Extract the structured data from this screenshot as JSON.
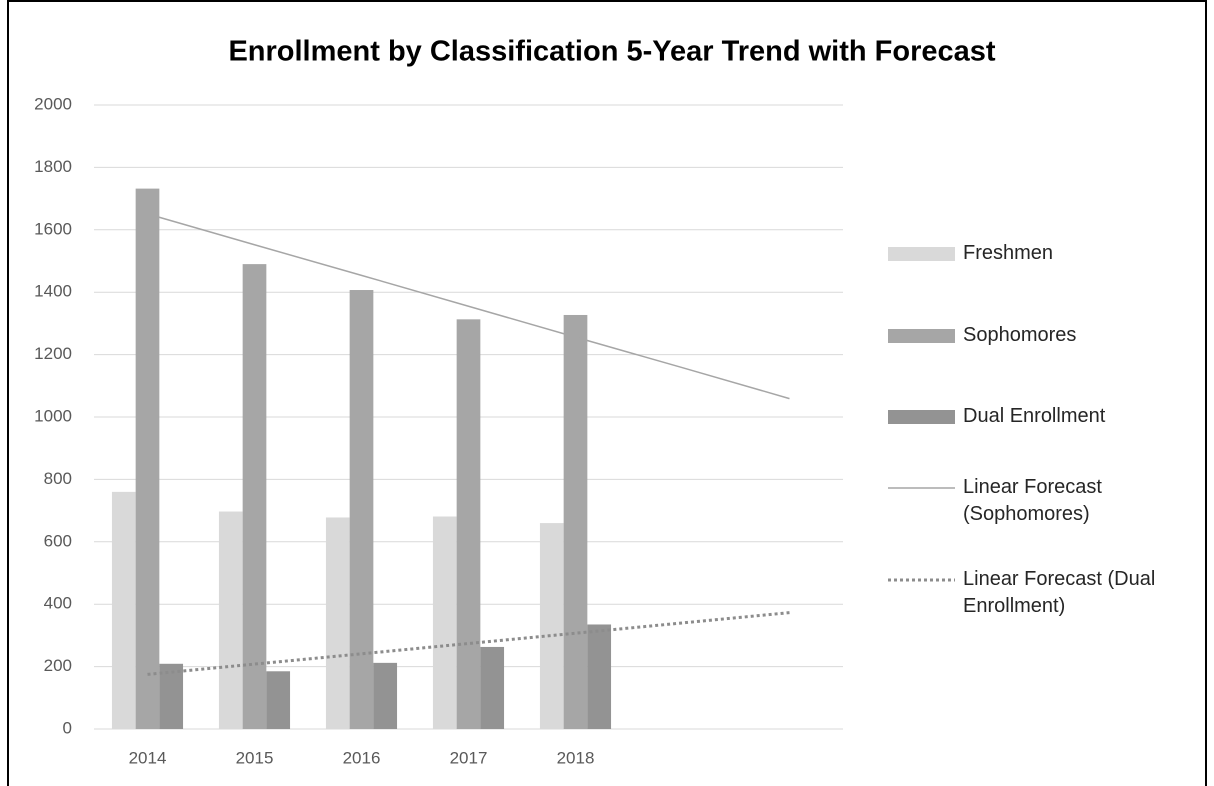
{
  "chart_data": {
    "type": "bar",
    "title": "Enrollment by Classification 5-Year Trend with Forecast",
    "categories": [
      "2014",
      "2015",
      "2016",
      "2017",
      "2018",
      null,
      null
    ],
    "series": [
      {
        "name": "Freshmen",
        "type": "bar",
        "color": "#d9d9d9",
        "values": [
          760,
          697,
          678,
          681,
          660,
          null,
          null
        ]
      },
      {
        "name": "Sophomores",
        "type": "bar",
        "color": "#a6a6a6",
        "values": [
          1732,
          1490,
          1407,
          1313,
          1327,
          null,
          null
        ]
      },
      {
        "name": "Dual Enrollment",
        "type": "bar",
        "color": "#939393",
        "values": [
          209,
          185,
          212,
          263,
          335,
          null,
          null
        ]
      },
      {
        "name": "Linear Forecast (Sophomores)",
        "type": "line",
        "dash": "solid",
        "color": "#a6a6a6",
        "values": [
          1651,
          1552,
          1454,
          1355,
          1256,
          1158,
          1059
        ]
      },
      {
        "name": "Linear Forecast (Dual Enrollment)",
        "type": "line",
        "dash": "dotted",
        "color": "#8c8c8c",
        "values": [
          175,
          208,
          241,
          274,
          307,
          340,
          373
        ]
      }
    ],
    "ylim": [
      0,
      2000
    ],
    "yticks": [
      0,
      200,
      400,
      600,
      800,
      1000,
      1200,
      1400,
      1600,
      1800,
      2000
    ],
    "grid": true,
    "legend": "right"
  }
}
